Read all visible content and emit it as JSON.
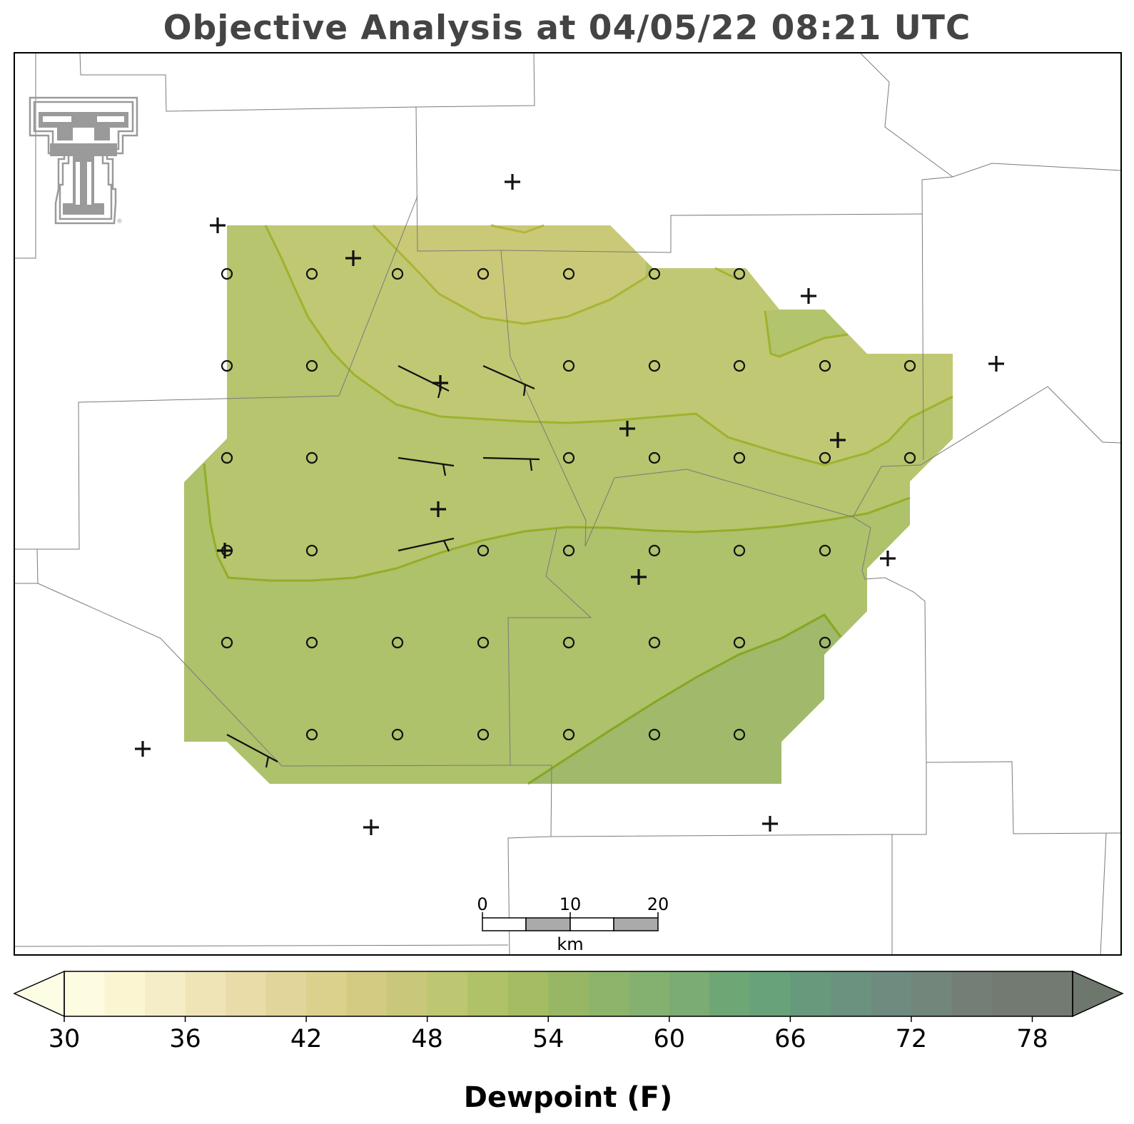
{
  "title": "Objective Analysis at 04/05/22 08:21 UTC",
  "colorbar": {
    "label": "Dewpoint (F)",
    "min": 30,
    "max": 80,
    "step": 2,
    "ticks": [
      "30",
      "36",
      "42",
      "48",
      "54",
      "60",
      "66",
      "72",
      "78"
    ],
    "colors": [
      "#fdfbe0",
      "#fbf5d2",
      "#f5edc6",
      "#efe4b6",
      "#e9dca8",
      "#e2d59b",
      "#dcd08d",
      "#d3cb82",
      "#c9c87a",
      "#bdc670",
      "#b0c268",
      "#a4bc62",
      "#98b765",
      "#8db46b",
      "#84b170",
      "#7aac73",
      "#6fa676",
      "#67a27a",
      "#679a7c",
      "#6b927e",
      "#6f8b7f",
      "#72867b",
      "#737f76",
      "#727a71"
    ],
    "over_color": "#6e776b",
    "under_color": "#fdfde6"
  },
  "scalebar": {
    "ticks": [
      "0",
      "10",
      "20"
    ],
    "unit": "km"
  },
  "station_markers": "+",
  "grid_markers": "o",
  "logo": "texas-tech-double-t-logo"
}
